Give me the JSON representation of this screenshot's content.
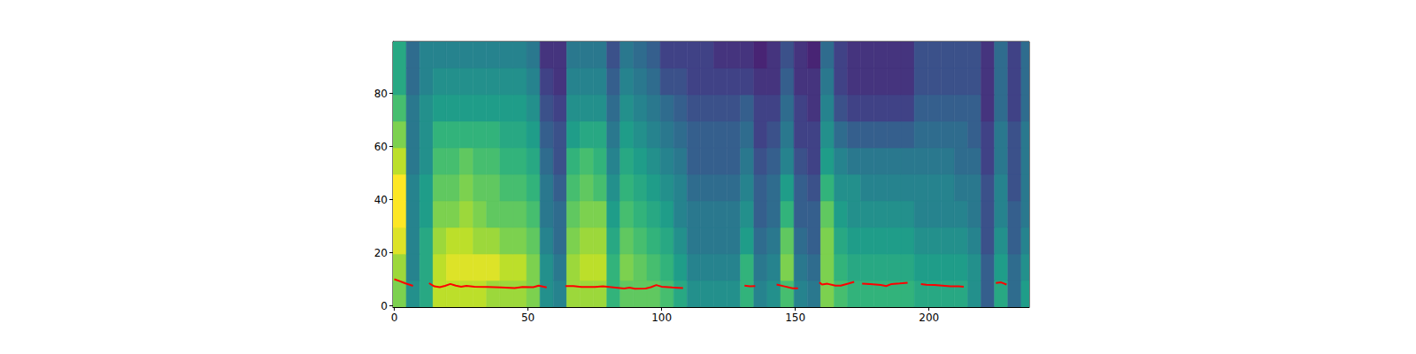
{
  "chart_data": {
    "type": "heatmap",
    "xlim": [
      -0.5,
      237.5
    ],
    "xticks": [
      0,
      50,
      100,
      150,
      200
    ],
    "ylim": [
      -0.5,
      99.5
    ],
    "yticks": [
      0,
      20,
      40,
      60,
      80
    ],
    "zlim": [
      0,
      10
    ],
    "cells": {
      "x_edges": [
        -0.5,
        4.5,
        9.5,
        14.5,
        19.5,
        24.5,
        29.5,
        34.5,
        39.5,
        44.5,
        49.5,
        54.5,
        59.5,
        64.5,
        69.5,
        74.5,
        79.5,
        84.5,
        89.5,
        94.5,
        99.5,
        104.5,
        109.5,
        114.5,
        119.5,
        124.5,
        129.5,
        134.5,
        139.5,
        144.5,
        149.5,
        154.5,
        159.5,
        164.5,
        169.5,
        174.5,
        179.5,
        184.5,
        189.5,
        194.5,
        199.5,
        204.5,
        209.5,
        214.5,
        219.5,
        224.5,
        229.5,
        234.5,
        237.5
      ],
      "y_edges": [
        -0.5,
        9.5,
        19.5,
        29.5,
        39.5,
        49.5,
        59.5,
        69.5,
        79.5,
        89.5,
        99.5
      ],
      "values": [
        [
          8,
          5,
          6,
          9,
          9,
          9,
          9,
          8.5,
          8.5,
          8.5,
          8,
          5,
          4.5,
          8.5,
          8.5,
          8.5,
          6.5,
          7.5,
          7.5,
          7.5,
          7,
          6,
          5,
          5,
          5,
          5,
          6.5,
          4.5,
          5,
          7,
          4.5,
          4,
          8,
          7,
          6.5,
          6.5,
          6.5,
          6.5,
          6.5,
          6,
          6,
          6,
          6,
          5,
          3,
          6,
          3.5,
          5.5
        ],
        [
          8.5,
          4.5,
          6,
          9,
          9.5,
          9.5,
          9.5,
          9.5,
          9,
          9,
          8,
          5,
          4,
          8.5,
          9,
          9,
          6.5,
          8,
          7.5,
          7,
          6.5,
          5.5,
          4.5,
          4.5,
          4.5,
          4.5,
          6.5,
          4,
          4.5,
          8,
          4,
          3.5,
          8,
          6.5,
          6,
          6,
          6,
          6,
          6,
          5.5,
          5.5,
          5.5,
          5.5,
          5,
          3,
          5.5,
          3.5,
          5
        ],
        [
          9.5,
          4.5,
          6,
          8.5,
          9,
          9,
          8.5,
          8.5,
          8,
          8,
          7.5,
          4.5,
          3.5,
          8,
          8.5,
          8.5,
          6,
          7.5,
          7,
          6.5,
          6,
          5,
          4,
          4,
          4,
          4,
          5.5,
          3.5,
          4,
          7.5,
          3.5,
          3,
          8,
          6,
          5.5,
          5.5,
          5.5,
          5.5,
          5.5,
          5,
          5,
          5,
          5,
          4.5,
          2.5,
          5,
          3,
          4.5
        ],
        [
          10,
          4.5,
          5.5,
          8,
          8,
          8.5,
          8,
          7.5,
          7.5,
          7.5,
          7,
          4,
          3.5,
          7.5,
          8,
          8,
          5.5,
          7,
          6.5,
          6,
          5.5,
          4.5,
          4,
          4,
          4,
          4,
          5,
          3,
          3.5,
          6.5,
          3,
          3,
          7.5,
          5.5,
          5,
          5,
          5,
          5,
          5,
          4.5,
          4.5,
          4.5,
          4.5,
          4,
          2.5,
          4.5,
          3,
          4
        ],
        [
          10,
          4.5,
          5.5,
          7.5,
          7.5,
          8,
          7.5,
          7.5,
          7,
          7,
          6.5,
          4,
          3,
          7,
          7.5,
          7,
          5,
          6.5,
          6,
          5.5,
          5,
          4.5,
          3.5,
          3.5,
          3.5,
          3.5,
          4.5,
          3,
          3.5,
          5.5,
          3,
          2.5,
          6.5,
          5,
          5,
          4.5,
          4.5,
          4.5,
          4.5,
          4.5,
          4.5,
          4.5,
          4,
          4,
          2.5,
          4.5,
          2.5,
          4
        ],
        [
          9,
          4,
          5,
          7,
          7,
          7.5,
          7,
          7,
          6.5,
          6.5,
          6,
          3.5,
          2.5,
          6.5,
          7,
          6.5,
          4.5,
          6,
          5.5,
          5,
          4.5,
          4,
          3,
          3,
          3,
          3,
          4,
          2.5,
          3,
          4.5,
          2.5,
          2,
          5.5,
          4.5,
          4,
          4,
          4,
          4,
          4,
          4,
          4,
          4,
          3.5,
          3.5,
          2,
          4,
          2.5,
          4
        ],
        [
          8,
          4,
          5,
          6.5,
          6.5,
          6.5,
          6.5,
          6.5,
          6,
          6,
          5.5,
          3,
          2.5,
          5.5,
          6,
          6,
          4,
          5.5,
          5,
          4.5,
          4,
          3.5,
          3,
          3,
          3,
          3,
          3.5,
          2,
          2.5,
          4,
          2,
          2,
          5,
          3.5,
          3,
          3,
          3,
          3,
          3,
          3.5,
          3.5,
          3.5,
          3.5,
          3,
          2,
          4,
          2.5,
          4
        ],
        [
          7,
          4,
          5,
          5.5,
          5.5,
          5.5,
          5.5,
          5.5,
          5.5,
          5.5,
          5,
          2.5,
          2,
          5,
          5,
          5,
          3.5,
          5,
          4.5,
          4,
          3.5,
          3,
          2.5,
          2.5,
          2.5,
          2.5,
          3,
          2,
          2,
          3.5,
          2,
          1.5,
          4.5,
          2.5,
          2,
          2,
          2,
          2,
          2,
          3,
          3,
          3,
          3,
          3,
          1.5,
          3.5,
          2,
          3.5
        ],
        [
          6,
          3.5,
          4.5,
          5,
          5,
          5,
          5,
          5,
          5,
          5,
          4.5,
          2,
          1.5,
          4.5,
          4.5,
          4.5,
          3,
          4.5,
          4,
          3.5,
          2.5,
          2.5,
          2,
          2,
          2,
          2,
          2,
          1.5,
          1.5,
          3,
          1.5,
          1.5,
          4,
          2,
          1.5,
          1.5,
          1.5,
          1.5,
          1.5,
          2.5,
          2.5,
          2.5,
          2.5,
          2.5,
          1.5,
          3.5,
          2,
          3.5
        ],
        [
          6,
          3.5,
          4.5,
          4.5,
          4.5,
          4.5,
          4.5,
          4.5,
          4.5,
          4.5,
          4,
          1.5,
          1.5,
          4,
          4,
          4,
          2.5,
          4,
          3.5,
          3,
          2,
          2,
          2,
          2,
          1.5,
          1.5,
          1.5,
          1,
          1.5,
          2.5,
          1.5,
          1,
          3.5,
          2,
          1.5,
          1.5,
          1.5,
          1.5,
          1.5,
          2.5,
          2.5,
          2.5,
          2.5,
          2.5,
          1.5,
          3.5,
          2,
          3.5
        ]
      ]
    },
    "series": [
      {
        "type": "line",
        "color": "red",
        "x": [
          0,
          2,
          4,
          7,
          10,
          13,
          15,
          17,
          19,
          21,
          23,
          25,
          27,
          30,
          35,
          40,
          45,
          48,
          52,
          54,
          57,
          60,
          64,
          67,
          70,
          75,
          78,
          82,
          86,
          88,
          90,
          94,
          96,
          98,
          100,
          104,
          108,
          120,
          131,
          133,
          135,
          139,
          143,
          146,
          149,
          151,
          155,
          159,
          160,
          162,
          165,
          167,
          170,
          172,
          173.5,
          175,
          178,
          180,
          182,
          184,
          186,
          189,
          192,
          195,
          197,
          199,
          202,
          205,
          208,
          211,
          213,
          219,
          225,
          227,
          229
        ],
        "values": [
          10,
          9.3,
          8.5,
          7.5,
          null,
          8.5,
          7.3,
          7,
          7.5,
          8.2,
          7.6,
          7.2,
          7.5,
          7.2,
          7.1,
          6.9,
          6.7,
          7.1,
          7.0,
          7.6,
          6.9,
          null,
          7.4,
          7.4,
          7.1,
          7.1,
          7.3,
          6.9,
          6.5,
          6.8,
          6.4,
          6.5,
          7.0,
          7.8,
          7.2,
          6.9,
          6.7,
          null,
          7.6,
          7.3,
          7.4,
          null,
          8.0,
          7.3,
          6.6,
          6.6,
          null,
          8.8,
          8.0,
          8.3,
          7.6,
          7.6,
          8.4,
          9.0,
          null,
          8.3,
          8.2,
          8.0,
          7.8,
          7.4,
          8.2,
          8.4,
          8.7,
          null,
          8.2,
          7.9,
          7.8,
          7.6,
          7.3,
          7.3,
          7.2,
          null,
          8.6,
          8.8,
          8.0
        ]
      }
    ]
  }
}
